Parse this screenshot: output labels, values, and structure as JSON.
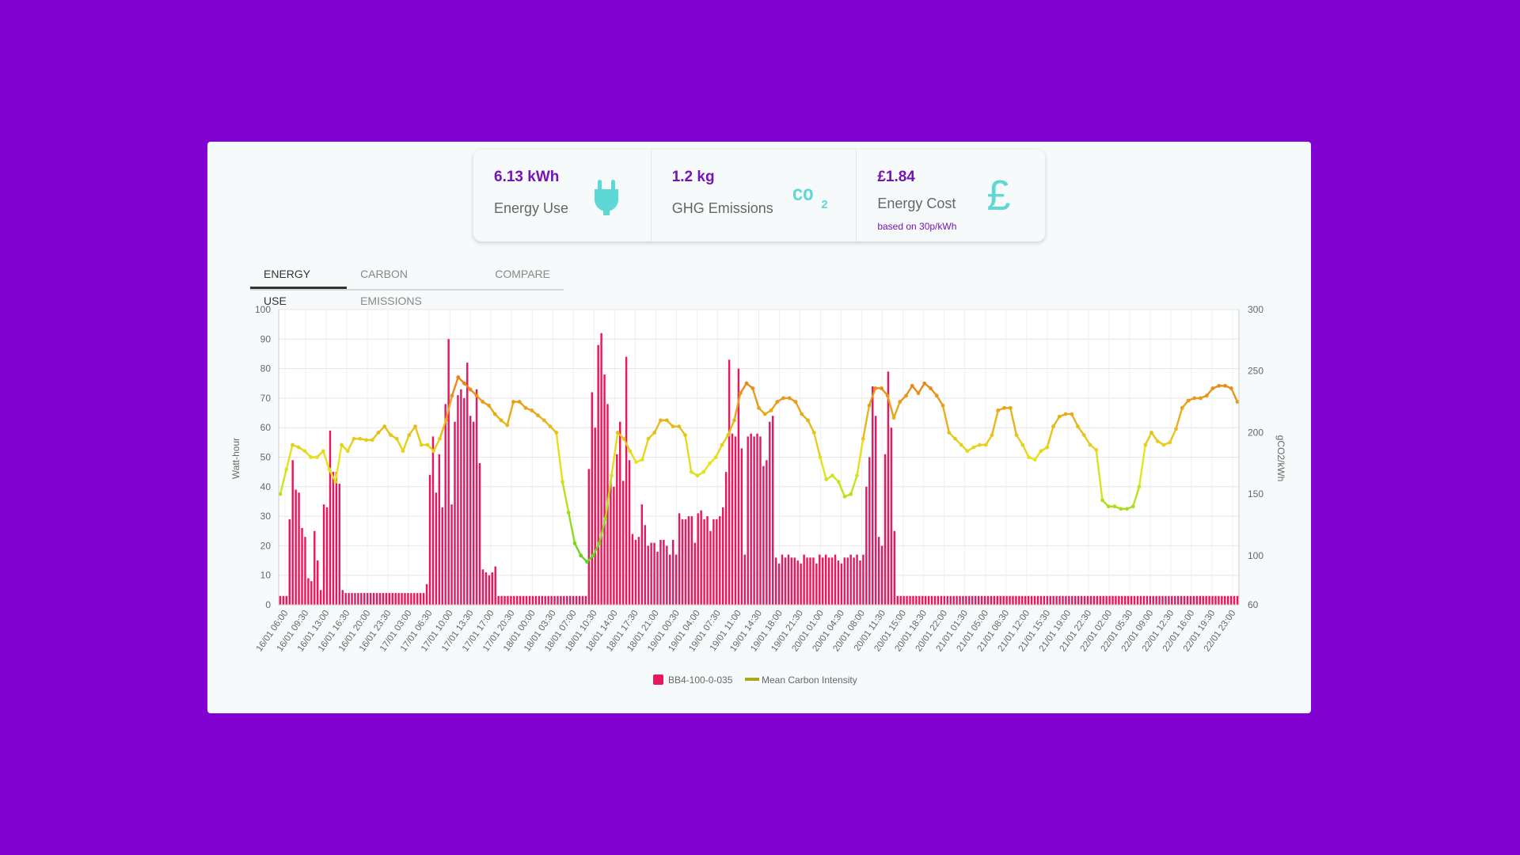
{
  "colors": {
    "bar": "#E8185F",
    "accent": "#7514B5",
    "icon": "#5ED8D4",
    "line_low": "#5FD422",
    "line_mid": "#E6E61C",
    "line_high": "#E9861A"
  },
  "stats": [
    {
      "value": "6.13 kWh",
      "label": "Energy Use",
      "icon": "plug-icon"
    },
    {
      "value": "1.2 kg",
      "label": "GHG Emissions",
      "icon": "co2-icon"
    },
    {
      "value": "£1.84",
      "label": "Energy Cost",
      "note": "based on 30p/kWh",
      "icon": "pound-icon"
    }
  ],
  "co2_icon_text": "co2",
  "pound_icon_text": "£",
  "tabs": [
    {
      "label": "ENERGY USE",
      "active": true
    },
    {
      "label": "CARBON EMISSIONS",
      "active": false
    },
    {
      "label": "COMPARE",
      "active": false
    }
  ],
  "chart_data": {
    "type": "bar",
    "ylabel": "Watt-hour",
    "y2label": "gCO2/kWh",
    "ylim": [
      0,
      100
    ],
    "y2lim": [
      60,
      300
    ],
    "yticks": [
      0,
      10,
      20,
      30,
      40,
      50,
      60,
      70,
      80,
      90,
      100
    ],
    "y2ticks": [
      60,
      100,
      150,
      200,
      250,
      300
    ],
    "x_tick_labels": [
      "16/01 06:00",
      "16/01 09:30",
      "16/01 13:00",
      "16/01 16:30",
      "16/01 20:00",
      "16/01 23:30",
      "17/01 03:00",
      "17/01 06:30",
      "17/01 10:00",
      "17/01 13:30",
      "17/01 17:00",
      "17/01 20:30",
      "18/01 00:00",
      "18/01 03:30",
      "18/01 07:00",
      "18/01 10:30",
      "18/01 14:00",
      "18/01 17:30",
      "18/01 21:00",
      "19/01 00:30",
      "19/01 04:00",
      "19/01 07:30",
      "19/01 11:00",
      "19/01 14:30",
      "19/01 18:00",
      "19/01 21:30",
      "20/01 01:00",
      "20/01 04:30",
      "20/01 08:00",
      "20/01 11:30",
      "20/01 15:00",
      "20/01 18:30",
      "20/01 22:00",
      "21/01 01:30",
      "21/01 05:00",
      "21/01 08:30",
      "21/01 12:00",
      "21/01 15:30",
      "21/01 19:00",
      "21/01 22:30",
      "22/01 02:00",
      "22/01 05:30",
      "22/01 09:00",
      "22/01 12:30",
      "22/01 16:00",
      "22/01 19:30",
      "22/01 23:00"
    ],
    "series": [
      {
        "name": "BB4-100-0-035",
        "type": "bar",
        "color": "#E8185F",
        "values": [
          3,
          3,
          3,
          29,
          49,
          39,
          38,
          26,
          23,
          9,
          8,
          25,
          15,
          5,
          34,
          33,
          59,
          45,
          45,
          41,
          5,
          4,
          4,
          4,
          4,
          4,
          4,
          4,
          4,
          4,
          4,
          4,
          4,
          4,
          4,
          4,
          4,
          4,
          4,
          4,
          4,
          4,
          4,
          4,
          4,
          4,
          4,
          7,
          44,
          57,
          38,
          51,
          33,
          68,
          90,
          34,
          62,
          71,
          73,
          70,
          82,
          64,
          62,
          73,
          48,
          12,
          11,
          10,
          11,
          13,
          3,
          3,
          3,
          3,
          3,
          3,
          3,
          3,
          3,
          3,
          3,
          3,
          3,
          3,
          3,
          3,
          3,
          3,
          3,
          3,
          3,
          3,
          3,
          3,
          3,
          3,
          3,
          3,
          3,
          46,
          72,
          60,
          88,
          92,
          78,
          68,
          42,
          40,
          51,
          62,
          42,
          84,
          49,
          24,
          22,
          23,
          34,
          27,
          20,
          21,
          21,
          18,
          22,
          22,
          20,
          17,
          22,
          17,
          31,
          29,
          29,
          30,
          30,
          21,
          31,
          32,
          29,
          30,
          25,
          29,
          29,
          30,
          33,
          45,
          83,
          58,
          57,
          80,
          53,
          17,
          57,
          58,
          57,
          58,
          57,
          47,
          49,
          62,
          64,
          16,
          14,
          17,
          16,
          17,
          16,
          16,
          15,
          14,
          17,
          16,
          16,
          16,
          14,
          17,
          16,
          17,
          16,
          16,
          17,
          15,
          14,
          16,
          16,
          17,
          16,
          17,
          15,
          17,
          40,
          50,
          74,
          64,
          23,
          20,
          51,
          79,
          60,
          25,
          3,
          3,
          3,
          3,
          3,
          3,
          3,
          3,
          3,
          3,
          3,
          3,
          3,
          3,
          3,
          3,
          3,
          3,
          3,
          3,
          3,
          3,
          3,
          3,
          3,
          3,
          3,
          3,
          3,
          3,
          3,
          3,
          3,
          3,
          3,
          3,
          3,
          3,
          3,
          3,
          3,
          3,
          3,
          3,
          3,
          3,
          3,
          3,
          3,
          3,
          3,
          3,
          3,
          3,
          3,
          3,
          3,
          3,
          3,
          3,
          3,
          3,
          3,
          3,
          3,
          3,
          3,
          3,
          3,
          3,
          3,
          3,
          3,
          3,
          3,
          3,
          3,
          3,
          3,
          3,
          3,
          3,
          3,
          3,
          3,
          3,
          3,
          3,
          3,
          3,
          3,
          3,
          3,
          3,
          3,
          3,
          3,
          3,
          3,
          3,
          3,
          3,
          3,
          3,
          3,
          3,
          3,
          3,
          3,
          3
        ]
      },
      {
        "name": "Mean Carbon Intensity",
        "type": "line",
        "axis": "right",
        "color": "#A8A81A",
        "values": [
          150,
          170,
          190,
          188,
          185,
          180,
          180,
          185,
          170,
          160,
          190,
          185,
          195,
          195,
          194,
          194,
          200,
          205,
          198,
          195,
          185,
          198,
          205,
          190,
          190,
          185,
          195,
          210,
          230,
          245,
          240,
          235,
          230,
          225,
          222,
          215,
          210,
          206,
          225,
          225,
          220,
          218,
          214,
          210,
          205,
          200,
          160,
          135,
          110,
          100,
          95,
          100,
          110,
          130,
          165,
          200,
          195,
          185,
          176,
          178,
          195,
          200,
          210,
          210,
          205,
          205,
          198,
          168,
          165,
          168,
          175,
          180,
          190,
          198,
          210,
          232,
          240,
          236,
          220,
          215,
          218,
          225,
          228,
          228,
          225,
          215,
          210,
          200,
          180,
          162,
          165,
          160,
          148,
          150,
          165,
          195,
          222,
          236,
          236,
          230,
          212,
          225,
          230,
          238,
          232,
          240,
          236,
          230,
          222,
          200,
          195,
          190,
          185,
          188,
          190,
          190,
          198,
          218,
          220,
          220,
          198,
          190,
          180,
          178,
          185,
          188,
          205,
          213,
          215,
          215,
          205,
          198,
          190,
          186,
          145,
          140,
          140,
          138,
          138,
          140,
          156,
          190,
          200,
          193,
          190,
          192,
          203,
          220,
          226,
          228,
          228,
          230,
          236,
          238,
          238,
          236,
          225
        ]
      }
    ]
  },
  "legend": {
    "bar_label": "BB4-100-0-035",
    "line_label": "Mean Carbon Intensity"
  }
}
